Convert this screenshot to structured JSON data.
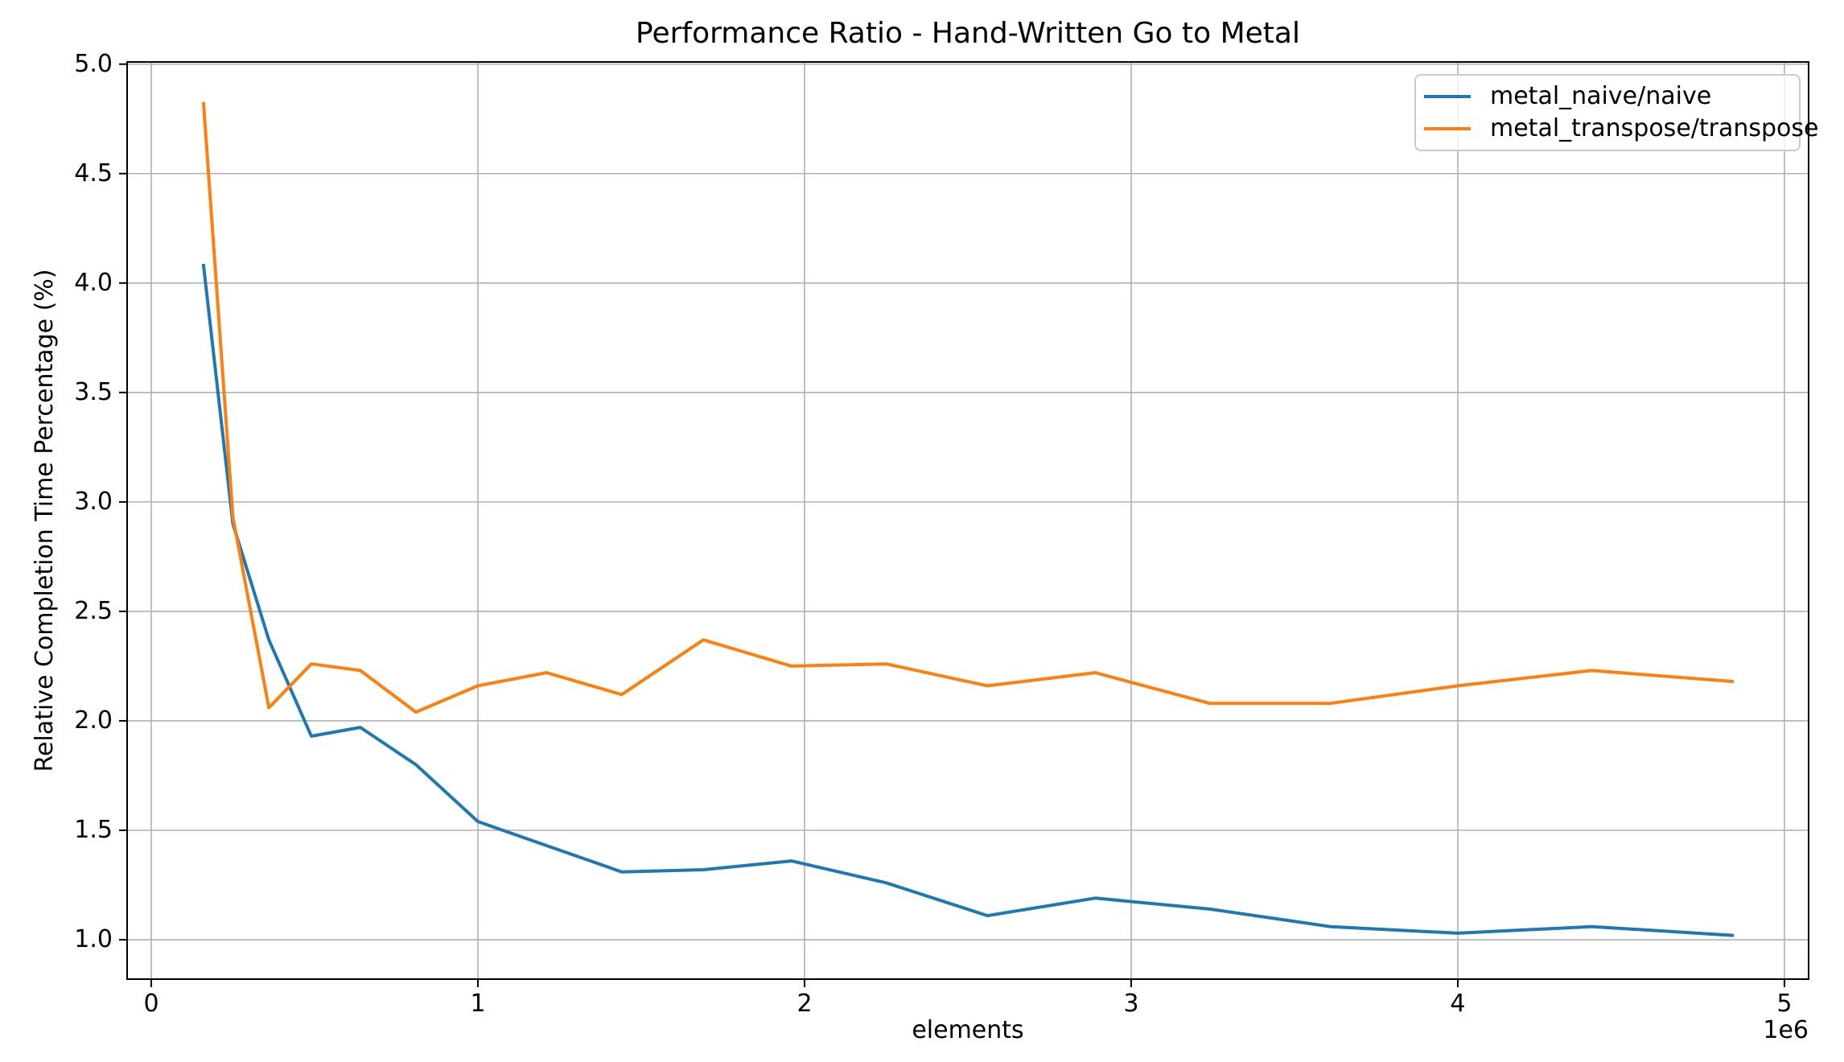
{
  "chart_data": {
    "type": "line",
    "title": "Performance Ratio - Hand-Written Go to Metal",
    "xlabel": "elements",
    "ylabel": "Relative Completion Time Percentage (%)",
    "x_offset_label": "1e6",
    "grid": true,
    "grid_color": "#b0b0b0",
    "background_color": "#ffffff",
    "legend_position": "upper right",
    "xlim": [
      -74000,
      5074000
    ],
    "ylim": [
      0.82,
      5.01
    ],
    "xticks": {
      "values": [
        0,
        1000000,
        2000000,
        3000000,
        4000000,
        5000000
      ],
      "labels": [
        "0",
        "1",
        "2",
        "3",
        "4",
        "5"
      ]
    },
    "yticks": {
      "values": [
        1.0,
        1.5,
        2.0,
        2.5,
        3.0,
        3.5,
        4.0,
        4.5,
        5.0
      ],
      "labels": [
        "1.0",
        "1.5",
        "2.0",
        "2.5",
        "3.0",
        "3.5",
        "4.0",
        "4.5",
        "5.0"
      ]
    },
    "x": [
      160000,
      250000,
      360000,
      490000,
      640000,
      810000,
      1000000,
      1210000,
      1440000,
      1690000,
      1960000,
      2250000,
      2560000,
      2890000,
      3240000,
      3610000,
      4000000,
      4410000,
      4840000
    ],
    "series": [
      {
        "name": "metal_naive/naive",
        "color": "#1f77b4",
        "values": [
          4.08,
          2.9,
          2.37,
          1.93,
          1.97,
          1.8,
          1.54,
          1.43,
          1.31,
          1.32,
          1.36,
          1.26,
          1.11,
          1.19,
          1.14,
          1.06,
          1.03,
          1.06,
          1.02
        ]
      },
      {
        "name": "metal_transpose/transpose",
        "color": "#ff7f0e",
        "values": [
          4.82,
          2.93,
          2.06,
          2.26,
          2.23,
          2.04,
          2.16,
          2.22,
          2.12,
          2.37,
          2.25,
          2.26,
          2.16,
          2.22,
          2.08,
          2.08,
          2.16,
          2.23,
          2.18
        ]
      }
    ]
  }
}
